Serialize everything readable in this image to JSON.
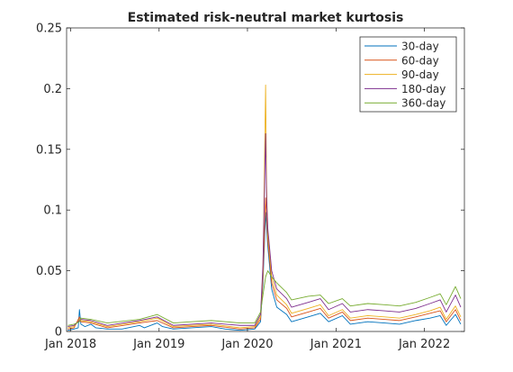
{
  "chart_data": {
    "type": "line",
    "title": "Estimated risk-neutral market kurtosis",
    "xlabel": "",
    "ylabel": "",
    "x_start": "2017-12-15",
    "x_end": "2022-06-15",
    "xlim": [
      "2017-12-15",
      "2022-06-15"
    ],
    "ylim": [
      0,
      0.25
    ],
    "yticks": [
      0,
      0.05,
      0.1,
      0.15,
      0.2,
      0.25
    ],
    "ytick_labels": [
      "0",
      "0.05",
      "0.1",
      "0.15",
      "0.2",
      "0.25"
    ],
    "xticks": [
      "2018-01-01",
      "2019-01-01",
      "2020-01-01",
      "2021-01-01",
      "2022-01-01"
    ],
    "xtick_labels": [
      "Jan 2018",
      "Jan 2019",
      "Jan 2020",
      "Jan 2021",
      "Jan 2022"
    ],
    "grid": false,
    "legend_position": "top-right",
    "series": [
      {
        "name": "30-day",
        "color": "#0072BD",
        "points": [
          [
            "2017-12-20",
            0.001
          ],
          [
            "2018-01-15",
            0.002
          ],
          [
            "2018-02-01",
            0.003
          ],
          [
            "2018-02-06",
            0.018
          ],
          [
            "2018-02-12",
            0.006
          ],
          [
            "2018-03-01",
            0.004
          ],
          [
            "2018-03-25",
            0.006
          ],
          [
            "2018-04-15",
            0.003
          ],
          [
            "2018-06-01",
            0.002
          ],
          [
            "2018-08-01",
            0.002
          ],
          [
            "2018-10-12",
            0.005
          ],
          [
            "2018-11-01",
            0.003
          ],
          [
            "2018-12-24",
            0.007
          ],
          [
            "2019-01-15",
            0.004
          ],
          [
            "2019-03-01",
            0.002
          ],
          [
            "2019-05-15",
            0.003
          ],
          [
            "2019-08-05",
            0.004
          ],
          [
            "2019-10-01",
            0.002
          ],
          [
            "2019-12-01",
            0.001
          ],
          [
            "2020-01-31",
            0.002
          ],
          [
            "2020-02-24",
            0.008
          ],
          [
            "2020-03-05",
            0.04
          ],
          [
            "2020-03-16",
            0.098
          ],
          [
            "2020-03-25",
            0.07
          ],
          [
            "2020-04-10",
            0.035
          ],
          [
            "2020-05-01",
            0.02
          ],
          [
            "2020-06-11",
            0.014
          ],
          [
            "2020-07-01",
            0.008
          ],
          [
            "2020-09-08",
            0.012
          ],
          [
            "2020-10-28",
            0.015
          ],
          [
            "2020-12-01",
            0.008
          ],
          [
            "2021-01-27",
            0.013
          ],
          [
            "2021-03-01",
            0.006
          ],
          [
            "2021-05-12",
            0.008
          ],
          [
            "2021-07-19",
            0.007
          ],
          [
            "2021-09-20",
            0.006
          ],
          [
            "2021-11-26",
            0.009
          ],
          [
            "2022-01-24",
            0.011
          ],
          [
            "2022-03-07",
            0.013
          ],
          [
            "2022-04-01",
            0.005
          ],
          [
            "2022-05-09",
            0.014
          ],
          [
            "2022-05-31",
            0.006
          ]
        ]
      },
      {
        "name": "60-day",
        "color": "#D95319",
        "points": [
          [
            "2017-12-20",
            0.002
          ],
          [
            "2018-01-15",
            0.003
          ],
          [
            "2018-02-06",
            0.012
          ],
          [
            "2018-02-12",
            0.008
          ],
          [
            "2018-03-25",
            0.007
          ],
          [
            "2018-06-01",
            0.003
          ],
          [
            "2018-10-12",
            0.007
          ],
          [
            "2018-12-24",
            0.009
          ],
          [
            "2019-03-01",
            0.003
          ],
          [
            "2019-05-15",
            0.004
          ],
          [
            "2019-08-05",
            0.005
          ],
          [
            "2019-12-01",
            0.002
          ],
          [
            "2020-01-31",
            0.003
          ],
          [
            "2020-02-24",
            0.01
          ],
          [
            "2020-03-05",
            0.045
          ],
          [
            "2020-03-16",
            0.11
          ],
          [
            "2020-03-25",
            0.075
          ],
          [
            "2020-04-10",
            0.04
          ],
          [
            "2020-05-01",
            0.026
          ],
          [
            "2020-06-11",
            0.019
          ],
          [
            "2020-07-01",
            0.012
          ],
          [
            "2020-09-08",
            0.016
          ],
          [
            "2020-10-28",
            0.019
          ],
          [
            "2020-12-01",
            0.011
          ],
          [
            "2021-01-27",
            0.016
          ],
          [
            "2021-03-01",
            0.009
          ],
          [
            "2021-05-12",
            0.011
          ],
          [
            "2021-07-19",
            0.01
          ],
          [
            "2021-09-20",
            0.009
          ],
          [
            "2021-11-26",
            0.012
          ],
          [
            "2022-01-24",
            0.015
          ],
          [
            "2022-03-07",
            0.017
          ],
          [
            "2022-04-01",
            0.008
          ],
          [
            "2022-05-09",
            0.018
          ],
          [
            "2022-05-31",
            0.009
          ]
        ]
      },
      {
        "name": "90-day",
        "color": "#EDB120",
        "points": [
          [
            "2017-12-20",
            0.003
          ],
          [
            "2018-01-15",
            0.004
          ],
          [
            "2018-02-06",
            0.01
          ],
          [
            "2018-02-12",
            0.009
          ],
          [
            "2018-03-25",
            0.008
          ],
          [
            "2018-06-01",
            0.004
          ],
          [
            "2018-10-12",
            0.008
          ],
          [
            "2018-12-24",
            0.011
          ],
          [
            "2019-03-01",
            0.004
          ],
          [
            "2019-05-15",
            0.005
          ],
          [
            "2019-08-05",
            0.006
          ],
          [
            "2019-12-01",
            0.003
          ],
          [
            "2020-01-31",
            0.004
          ],
          [
            "2020-02-24",
            0.012
          ],
          [
            "2020-03-05",
            0.05
          ],
          [
            "2020-03-16",
            0.203
          ],
          [
            "2020-03-20",
            0.12
          ],
          [
            "2020-03-25",
            0.08
          ],
          [
            "2020-04-10",
            0.045
          ],
          [
            "2020-05-01",
            0.03
          ],
          [
            "2020-06-11",
            0.022
          ],
          [
            "2020-07-01",
            0.015
          ],
          [
            "2020-09-08",
            0.019
          ],
          [
            "2020-10-28",
            0.022
          ],
          [
            "2020-12-01",
            0.013
          ],
          [
            "2021-01-27",
            0.018
          ],
          [
            "2021-03-01",
            0.011
          ],
          [
            "2021-05-12",
            0.013
          ],
          [
            "2021-07-19",
            0.012
          ],
          [
            "2021-09-20",
            0.011
          ],
          [
            "2021-11-26",
            0.014
          ],
          [
            "2022-01-24",
            0.017
          ],
          [
            "2022-03-07",
            0.02
          ],
          [
            "2022-04-01",
            0.01
          ],
          [
            "2022-05-09",
            0.021
          ],
          [
            "2022-05-31",
            0.012
          ]
        ]
      },
      {
        "name": "180-day",
        "color": "#7E2F8E",
        "points": [
          [
            "2017-12-20",
            0.004
          ],
          [
            "2018-01-15",
            0.005
          ],
          [
            "2018-02-06",
            0.009
          ],
          [
            "2018-02-12",
            0.01
          ],
          [
            "2018-03-25",
            0.009
          ],
          [
            "2018-06-01",
            0.005
          ],
          [
            "2018-10-12",
            0.009
          ],
          [
            "2018-12-24",
            0.012
          ],
          [
            "2019-03-01",
            0.005
          ],
          [
            "2019-05-15",
            0.006
          ],
          [
            "2019-08-05",
            0.007
          ],
          [
            "2019-12-01",
            0.005
          ],
          [
            "2020-01-31",
            0.005
          ],
          [
            "2020-02-24",
            0.014
          ],
          [
            "2020-03-05",
            0.055
          ],
          [
            "2020-03-16",
            0.163
          ],
          [
            "2020-03-20",
            0.11
          ],
          [
            "2020-03-25",
            0.085
          ],
          [
            "2020-04-10",
            0.05
          ],
          [
            "2020-05-01",
            0.035
          ],
          [
            "2020-06-11",
            0.027
          ],
          [
            "2020-07-01",
            0.02
          ],
          [
            "2020-09-08",
            0.024
          ],
          [
            "2020-10-28",
            0.027
          ],
          [
            "2020-12-01",
            0.018
          ],
          [
            "2021-01-27",
            0.023
          ],
          [
            "2021-03-01",
            0.016
          ],
          [
            "2021-05-12",
            0.018
          ],
          [
            "2021-07-19",
            0.017
          ],
          [
            "2021-09-20",
            0.016
          ],
          [
            "2021-11-26",
            0.019
          ],
          [
            "2022-01-24",
            0.023
          ],
          [
            "2022-03-07",
            0.026
          ],
          [
            "2022-04-01",
            0.016
          ],
          [
            "2022-05-09",
            0.03
          ],
          [
            "2022-05-31",
            0.02
          ]
        ]
      },
      {
        "name": "360-day",
        "color": "#77AC30",
        "points": [
          [
            "2017-12-20",
            0.005
          ],
          [
            "2018-01-15",
            0.006
          ],
          [
            "2018-02-06",
            0.008
          ],
          [
            "2018-02-12",
            0.011
          ],
          [
            "2018-03-25",
            0.01
          ],
          [
            "2018-06-01",
            0.007
          ],
          [
            "2018-10-12",
            0.01
          ],
          [
            "2018-12-24",
            0.014
          ],
          [
            "2019-03-01",
            0.007
          ],
          [
            "2019-05-15",
            0.008
          ],
          [
            "2019-08-05",
            0.009
          ],
          [
            "2019-12-01",
            0.007
          ],
          [
            "2020-01-31",
            0.007
          ],
          [
            "2020-02-24",
            0.016
          ],
          [
            "2020-03-05",
            0.03
          ],
          [
            "2020-03-16",
            0.045
          ],
          [
            "2020-03-25",
            0.05
          ],
          [
            "2020-04-10",
            0.045
          ],
          [
            "2020-05-01",
            0.04
          ],
          [
            "2020-06-11",
            0.032
          ],
          [
            "2020-07-01",
            0.026
          ],
          [
            "2020-09-08",
            0.029
          ],
          [
            "2020-10-28",
            0.03
          ],
          [
            "2020-12-01",
            0.023
          ],
          [
            "2021-01-27",
            0.027
          ],
          [
            "2021-03-01",
            0.021
          ],
          [
            "2021-05-12",
            0.023
          ],
          [
            "2021-07-19",
            0.022
          ],
          [
            "2021-09-20",
            0.021
          ],
          [
            "2021-11-26",
            0.024
          ],
          [
            "2022-01-24",
            0.028
          ],
          [
            "2022-03-07",
            0.031
          ],
          [
            "2022-04-01",
            0.022
          ],
          [
            "2022-05-09",
            0.037
          ],
          [
            "2022-05-31",
            0.027
          ]
        ]
      }
    ]
  }
}
